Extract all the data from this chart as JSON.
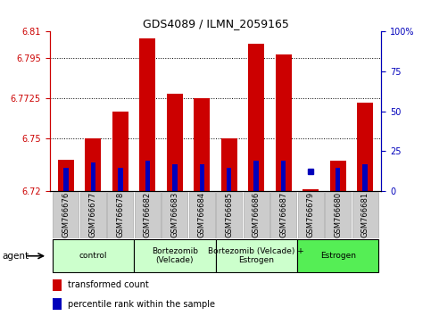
{
  "title": "GDS4089 / ILMN_2059165",
  "samples": [
    "GSM766676",
    "GSM766677",
    "GSM766678",
    "GSM766682",
    "GSM766683",
    "GSM766684",
    "GSM766685",
    "GSM766686",
    "GSM766687",
    "GSM766679",
    "GSM766680",
    "GSM766681"
  ],
  "red_values": [
    6.7375,
    6.75,
    6.765,
    6.806,
    6.775,
    6.7725,
    6.75,
    6.803,
    6.797,
    6.721,
    6.737,
    6.77
  ],
  "blue_values": [
    6.733,
    6.736,
    6.733,
    6.737,
    6.735,
    6.735,
    6.733,
    6.737,
    6.737,
    6.731,
    6.733,
    6.735
  ],
  "blue_marker_only": [
    false,
    false,
    false,
    false,
    false,
    false,
    false,
    false,
    false,
    true,
    false,
    false
  ],
  "ymin": 6.72,
  "ymax": 6.81,
  "yticks": [
    6.72,
    6.75,
    6.7725,
    6.795,
    6.81
  ],
  "ytick_labels": [
    "6.72",
    "6.75",
    "6.7725",
    "6.795",
    "6.81"
  ],
  "right_yticks": [
    0,
    25,
    50,
    75,
    100
  ],
  "right_ytick_labels": [
    "0",
    "25",
    "50",
    "75",
    "100%"
  ],
  "groups": [
    {
      "label": "control",
      "start": 0,
      "end": 3
    },
    {
      "label": "Bortezomib\n(Velcade)",
      "start": 3,
      "end": 6
    },
    {
      "label": "Bortezomib (Velcade) +\nEstrogen",
      "start": 6,
      "end": 9
    },
    {
      "label": "Estrogen",
      "start": 9,
      "end": 12
    }
  ],
  "group_colors": [
    "#ccffcc",
    "#ccffcc",
    "#ccffcc",
    "#55ee55"
  ],
  "bar_color_red": "#cc0000",
  "bar_color_blue": "#0000bb",
  "bar_width": 0.6,
  "blue_bar_width": 0.18,
  "background_color": "#ffffff",
  "plot_bg": "#ffffff",
  "tick_label_color_left": "#cc0000",
  "tick_label_color_right": "#0000bb",
  "sample_box_color": "#cccccc",
  "sample_box_edge": "#aaaaaa"
}
